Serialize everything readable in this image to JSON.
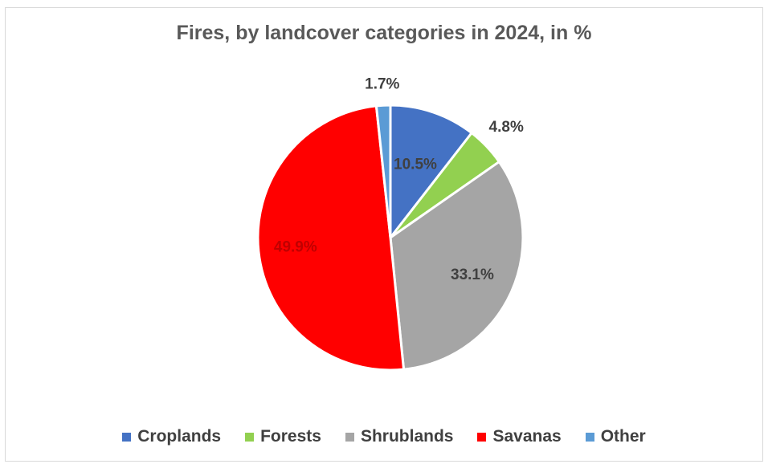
{
  "chart_data": {
    "type": "pie",
    "title": "Fires, by landcover categories in 2024, in %",
    "legend_position": "bottom",
    "slices": [
      {
        "label": "Croplands",
        "value": 10.5,
        "display": "10.5%",
        "color": "#4472c4",
        "label_color": "#404040"
      },
      {
        "label": "Forests",
        "value": 4.8,
        "display": "4.8%",
        "color": "#92d050",
        "label_color": "#404040"
      },
      {
        "label": "Shrublands",
        "value": 33.1,
        "display": "33.1%",
        "color": "#a5a5a5",
        "label_color": "#404040"
      },
      {
        "label": "Savanas",
        "value": 49.9,
        "display": "49.9%",
        "color": "#ff0000",
        "label_color": "#c00000"
      },
      {
        "label": "Other",
        "value": 1.7,
        "display": "1.7%",
        "color": "#5b9bd5",
        "label_color": "#404040"
      }
    ]
  }
}
